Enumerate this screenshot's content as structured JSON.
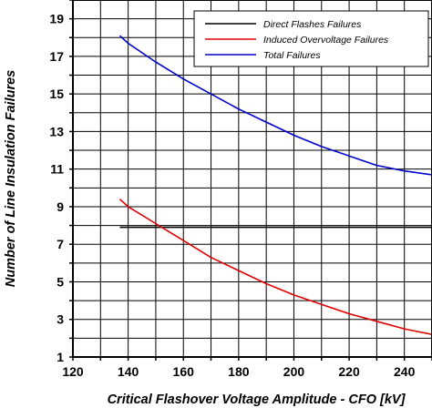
{
  "chart_data": {
    "type": "line",
    "xlabel": "Critical Flashover Voltage Amplitude - CFO [kV]",
    "ylabel": "Number of Line Insulation Failures",
    "xlim": [
      120,
      250
    ],
    "ylim": [
      1,
      20
    ],
    "x_ticks": [
      120,
      140,
      160,
      180,
      200,
      220,
      240
    ],
    "y_ticks": [
      1,
      3,
      5,
      7,
      9,
      11,
      13,
      15,
      17,
      19
    ],
    "x_grid": [
      120,
      130,
      140,
      150,
      160,
      170,
      180,
      190,
      200,
      210,
      220,
      230,
      240,
      250
    ],
    "y_grid": [
      1,
      2,
      3,
      4,
      5,
      6,
      7,
      8,
      9,
      10,
      11,
      12,
      13,
      14,
      15,
      16,
      17,
      18,
      19,
      20
    ],
    "grid": true,
    "legend_position": "top-right",
    "series": [
      {
        "name": "Direct Flashes Failures",
        "color": "#000000",
        "x": [
          137,
          250
        ],
        "y": [
          7.9,
          7.9
        ]
      },
      {
        "name": "Induced Overvoltage Failures",
        "color": "#e00000",
        "x": [
          137,
          140,
          150,
          160,
          170,
          180,
          190,
          200,
          210,
          220,
          230,
          240,
          250
        ],
        "y": [
          9.4,
          9.0,
          8.1,
          7.2,
          6.3,
          5.6,
          4.9,
          4.3,
          3.8,
          3.3,
          2.9,
          2.5,
          2.2
        ]
      },
      {
        "name": "Total Failures",
        "color": "#0000cc",
        "x": [
          137,
          140,
          150,
          160,
          170,
          180,
          190,
          200,
          210,
          220,
          230,
          240,
          250
        ],
        "y": [
          18.1,
          17.7,
          16.7,
          15.8,
          15.0,
          14.2,
          13.5,
          12.8,
          12.2,
          11.7,
          11.2,
          10.9,
          10.7
        ]
      }
    ]
  }
}
